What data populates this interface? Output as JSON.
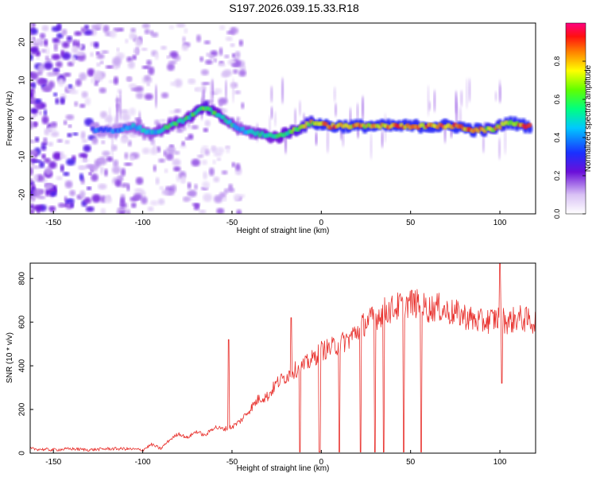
{
  "title": "S197.2026.039.15.33.R18",
  "chart_data": [
    {
      "type": "heatmap",
      "xlabel": "Height of straight line (km)",
      "ylabel": "Frequency (Hz)",
      "xlim": [
        -163,
        120
      ],
      "ylim": [
        -25,
        25
      ],
      "xticks": [
        -150,
        -100,
        -50,
        0,
        50,
        100
      ],
      "yticks": [
        -20,
        -10,
        0,
        10,
        20
      ],
      "grid": false,
      "colorbar": {
        "label": "Normalized spectral amplitude",
        "range": [
          0,
          1
        ],
        "ticks": [
          "0.0",
          "0.2",
          "0.4",
          "0.6",
          "0.8"
        ]
      },
      "ridge": {
        "description": "dominant frequency track (Hz) vs height (km)",
        "x": [
          -125,
          -115,
          -105,
          -95,
          -85,
          -75,
          -65,
          -55,
          -45,
          -35,
          -25,
          -15,
          -5,
          5,
          15,
          25,
          35,
          45,
          55,
          65,
          75,
          85,
          95,
          105,
          115
        ],
        "freq": [
          -3,
          -3,
          -2,
          -4,
          -2,
          0,
          3,
          0,
          -3,
          -4,
          -5,
          -3,
          -1,
          -2,
          -2,
          -2,
          -2,
          -2,
          -2,
          -2,
          -2,
          -3,
          -3,
          -1,
          -2
        ],
        "amplitude": [
          0.4,
          0.4,
          0.5,
          0.5,
          0.6,
          0.6,
          0.7,
          0.6,
          0.5,
          0.6,
          0.6,
          0.7,
          0.8,
          0.95,
          0.9,
          0.85,
          0.9,
          0.9,
          0.9,
          0.95,
          0.9,
          0.9,
          0.8,
          0.85,
          0.9
        ]
      }
    },
    {
      "type": "line",
      "xlabel": "Height of straight line (km)",
      "ylabel": "SNR (10 * v/v)",
      "xlim": [
        -163,
        120
      ],
      "ylim": [
        0,
        870
      ],
      "xticks": [
        -150,
        -100,
        -50,
        0,
        50,
        100
      ],
      "yticks": [
        0,
        200,
        400,
        600,
        800
      ],
      "grid": false,
      "series": [
        {
          "name": "SNR",
          "color": "#e8302c",
          "x": [
            -163,
            -150,
            -140,
            -130,
            -120,
            -110,
            -100,
            -95,
            -90,
            -85,
            -80,
            -75,
            -70,
            -65,
            -60,
            -55,
            -50,
            -45,
            -40,
            -35,
            -30,
            -25,
            -20,
            -15,
            -10,
            -5,
            0,
            5,
            10,
            15,
            20,
            25,
            30,
            35,
            40,
            45,
            50,
            55,
            60,
            65,
            70,
            75,
            80,
            85,
            90,
            95,
            100,
            105,
            110,
            115,
            120
          ],
          "values": [
            20,
            15,
            20,
            15,
            20,
            20,
            15,
            40,
            20,
            60,
            90,
            70,
            100,
            80,
            120,
            110,
            120,
            150,
            200,
            250,
            260,
            320,
            350,
            380,
            400,
            430,
            470,
            480,
            500,
            520,
            560,
            600,
            620,
            650,
            660,
            680,
            690,
            680,
            660,
            670,
            650,
            640,
            630,
            610,
            600,
            610,
            620,
            600,
            620,
            610,
            600
          ]
        }
      ],
      "dropouts_x": [
        -12,
        -1,
        10,
        22,
        30,
        35,
        46,
        56
      ],
      "spikes": [
        {
          "x": -52,
          "y": 520
        },
        {
          "x": -17,
          "y": 620
        },
        {
          "x": 100,
          "y": 870
        },
        {
          "x": 101,
          "y": 320
        }
      ]
    }
  ]
}
